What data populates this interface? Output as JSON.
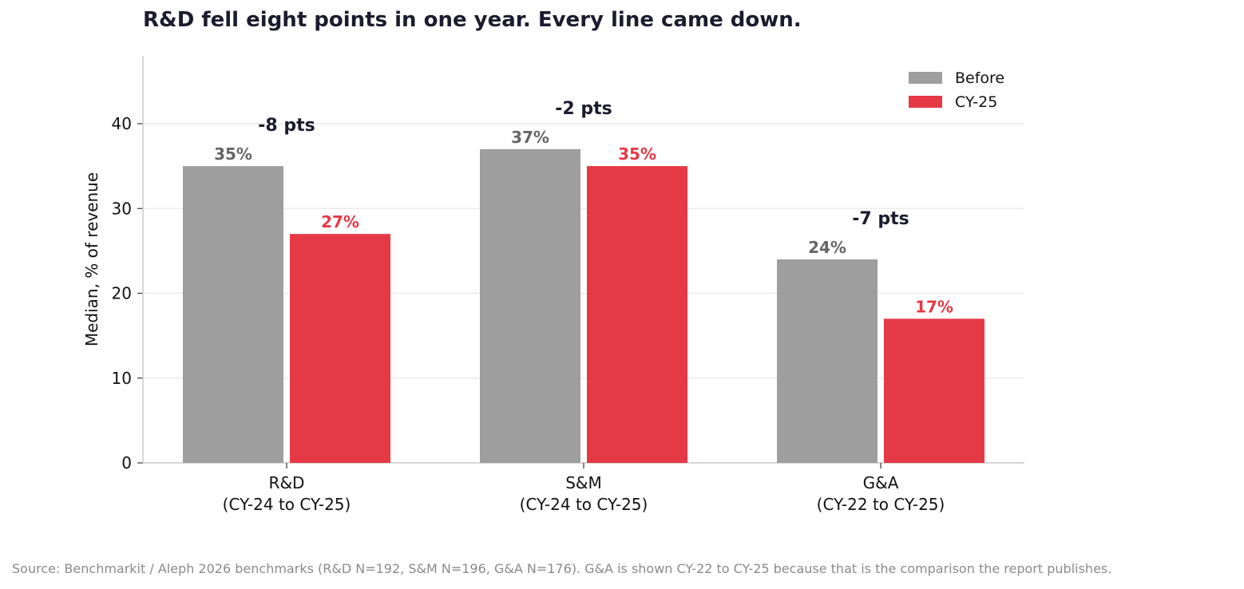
{
  "title": "R&D fell eight points in one year. Every line came down.",
  "footnote": "Source: Benchmarkit / Aleph 2026 benchmarks (R&D N=192, S&M N=196, G&A N=176). G&A is shown CY-22 to CY-25 because that is the comparison the report publishes.",
  "chart_data": {
    "type": "bar",
    "categories": [
      [
        "R&D",
        "(CY-24 to CY-25)"
      ],
      [
        "S&M",
        "(CY-24 to CY-25)"
      ],
      [
        "G&A",
        "(CY-22 to CY-25)"
      ]
    ],
    "series": [
      {
        "name": "Before",
        "values": [
          35,
          37,
          24
        ],
        "labels": [
          "35%",
          "37%",
          "24%"
        ],
        "color": "#9e9e9e",
        "label_color": "#666666"
      },
      {
        "name": "CY-25",
        "values": [
          27,
          35,
          17
        ],
        "labels": [
          "27%",
          "35%",
          "17%"
        ],
        "color": "#e63946",
        "label_color": "#e63946"
      }
    ],
    "annotations": [
      "-8 pts",
      "-2 pts",
      "-7 pts"
    ],
    "annotation_color": "#1c1c2e",
    "ylabel": "Median, % of revenue",
    "xlabel": "",
    "ylim": [
      0,
      48
    ],
    "yticks": [
      "0",
      "10",
      "20",
      "30",
      "40"
    ],
    "grid": true,
    "legend_position": "top-right"
  }
}
